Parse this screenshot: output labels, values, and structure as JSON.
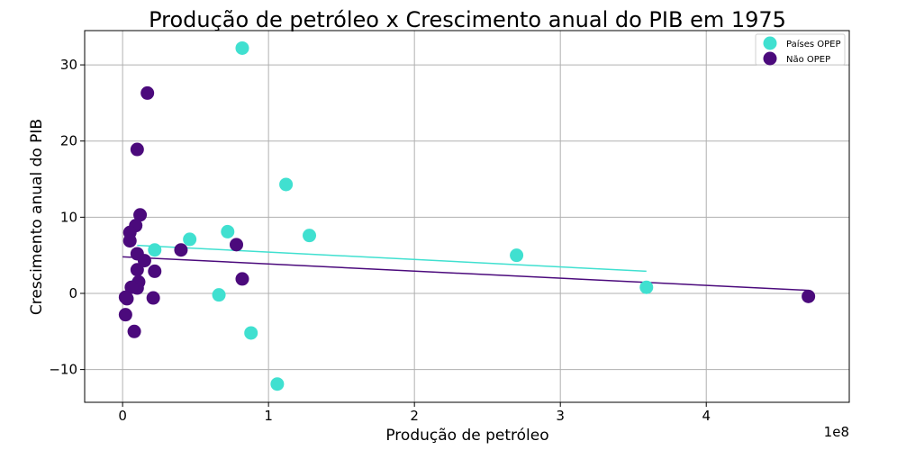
{
  "chart_data": {
    "type": "scatter",
    "title": "Produção de petróleo x Crescimento anual do PIB em 1975",
    "xlabel": "Produção de petróleo",
    "ylabel": "Crescimento anual do PIB",
    "x_offset_label": "1e8",
    "xlim": [
      -26000000,
      498000000
    ],
    "ylim": [
      -14.3,
      34.5
    ],
    "xticks": [
      0,
      100000000,
      200000000,
      300000000,
      400000000
    ],
    "xtick_labels": [
      "0",
      "1",
      "2",
      "3",
      "4"
    ],
    "yticks": [
      -10,
      0,
      10,
      20,
      30
    ],
    "ytick_labels": [
      "−10",
      "0",
      "10",
      "20",
      "30"
    ],
    "grid": true,
    "legend_position": "top-right",
    "series": [
      {
        "name": "Países OPEP",
        "color": "#40e0d0",
        "points": [
          [
            82000000,
            32.2
          ],
          [
            112000000,
            14.3
          ],
          [
            128000000,
            7.6
          ],
          [
            72000000,
            8.1
          ],
          [
            46000000,
            7.1
          ],
          [
            22000000,
            5.7
          ],
          [
            270000000,
            5.0
          ],
          [
            359000000,
            0.8
          ],
          [
            66000000,
            -0.2
          ],
          [
            88000000,
            -5.2
          ],
          [
            106000000,
            -11.9
          ],
          [
            10000000,
            1.2
          ]
        ],
        "trend": {
          "x": [
            10000000,
            359000000
          ],
          "y": [
            6.3,
            2.9
          ]
        }
      },
      {
        "name": "Não OPEP",
        "color": "#4b0a7c",
        "points": [
          [
            17000000,
            26.3
          ],
          [
            10000000,
            18.9
          ],
          [
            12000000,
            10.3
          ],
          [
            9000000,
            8.9
          ],
          [
            5000000,
            8.0
          ],
          [
            5000000,
            6.9
          ],
          [
            10000000,
            5.2
          ],
          [
            15000000,
            4.3
          ],
          [
            40000000,
            5.7
          ],
          [
            78000000,
            6.4
          ],
          [
            10000000,
            3.1
          ],
          [
            22000000,
            2.9
          ],
          [
            82000000,
            1.9
          ],
          [
            11000000,
            1.5
          ],
          [
            10000000,
            0.7
          ],
          [
            6000000,
            0.8
          ],
          [
            21000000,
            -0.6
          ],
          [
            2000000,
            -0.5
          ],
          [
            3000000,
            -0.7
          ],
          [
            2000000,
            -2.8
          ],
          [
            8000000,
            -5.0
          ],
          [
            470000000,
            -0.4
          ]
        ],
        "trend": {
          "x": [
            0,
            470000000
          ],
          "y": [
            4.8,
            0.4
          ]
        }
      }
    ]
  }
}
